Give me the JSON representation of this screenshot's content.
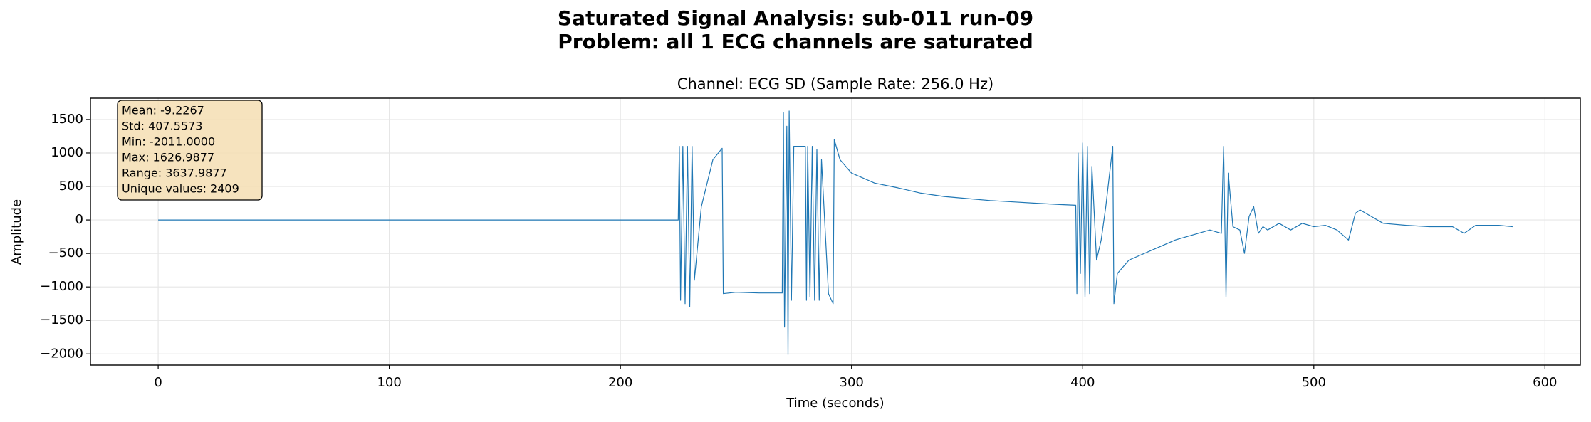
{
  "chart_data": {
    "type": "line",
    "title_lines": [
      "Saturated Signal Analysis: sub-011 run-09",
      "Problem: all 1 ECG channels are saturated"
    ],
    "subtitle": "Channel: ECG SD (Sample Rate: 256.0 Hz)",
    "x_label": "Time (seconds)",
    "y_label": "Amplitude",
    "annotation_lines": [
      "Mean: -9.2267",
      "Std: 407.5573",
      "Min: -2011.0000",
      "Max: 1626.9877",
      "Range: 3637.9877",
      "Unique values: 2409"
    ],
    "xlim": [
      -29.3,
      615.3
    ],
    "ylim": [
      -2167,
      1818
    ],
    "xticks": [
      0,
      100,
      200,
      300,
      400,
      500,
      600
    ],
    "yticks": [
      {
        "value": -2000,
        "label": "−2000"
      },
      {
        "value": -1500,
        "label": "−1500"
      },
      {
        "value": -1000,
        "label": "−1000"
      },
      {
        "value": -500,
        "label": "−500"
      },
      0,
      500,
      1000,
      1500
    ],
    "grid": true,
    "series": [
      {
        "color": "#1f77b4",
        "x": [
          0,
          225,
          225.5,
          226,
          227,
          228,
          229,
          230,
          231,
          232,
          235,
          240,
          244,
          244.5,
          250,
          260,
          270,
          270.5,
          271,
          272,
          272.5,
          273,
          274,
          275,
          280,
          280.5,
          281,
          282,
          283,
          284,
          285,
          286,
          287,
          290,
          292,
          292.5,
          295,
          300,
          310,
          320,
          330,
          340,
          350,
          360,
          370,
          380,
          390,
          397,
          397.5,
          398,
          399,
          400,
          401,
          402,
          403,
          404,
          406,
          408,
          410,
          412,
          413,
          413.5,
          415,
          420,
          430,
          440,
          450,
          455,
          460,
          461,
          462,
          463,
          465,
          468,
          470,
          472,
          474,
          476,
          478,
          480,
          485,
          490,
          495,
          500,
          505,
          510,
          515,
          518,
          520,
          525,
          530,
          540,
          550,
          560,
          565,
          570,
          580,
          586
        ],
        "values": [
          0,
          0,
          1100,
          -1200,
          1100,
          -1250,
          1100,
          -1300,
          1100,
          -900,
          200,
          900,
          1070,
          -1100,
          -1080,
          -1090,
          -1090,
          1600,
          -1600,
          1400,
          -2011,
          1627,
          -1200,
          1100,
          1100,
          -1200,
          1100,
          -1150,
          1100,
          -1200,
          1050,
          -1200,
          900,
          -1100,
          -1250,
          1200,
          900,
          700,
          550,
          480,
          400,
          350,
          320,
          290,
          270,
          250,
          230,
          220,
          -1100,
          1000,
          -800,
          1150,
          -1150,
          1100,
          -1100,
          800,
          -600,
          -300,
          200,
          800,
          1100,
          -1250,
          -800,
          -600,
          -450,
          -300,
          -200,
          -150,
          -200,
          1100,
          -1150,
          700,
          -100,
          -150,
          -500,
          50,
          200,
          -200,
          -100,
          -150,
          -50,
          -150,
          -50,
          -100,
          -80,
          -150,
          -300,
          100,
          150,
          50,
          -50,
          -80,
          -100,
          -100,
          -200,
          -80,
          -80,
          -100
        ]
      }
    ]
  }
}
